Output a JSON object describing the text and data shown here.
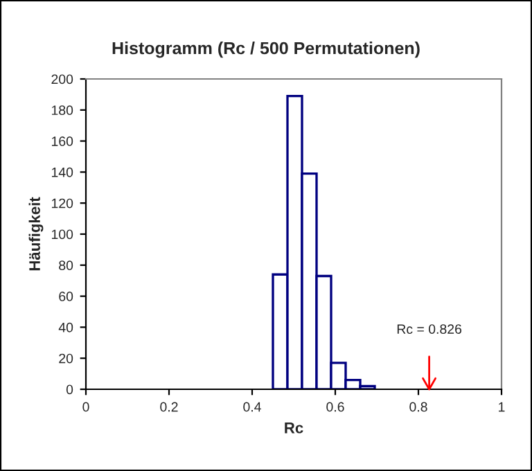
{
  "chart_data": {
    "type": "histogram",
    "title": "Histogramm (Rc / 500 Permutationen)",
    "xlabel": "Rc",
    "ylabel": "Häufigkeit",
    "bins": [
      0.45,
      0.485,
      0.52,
      0.555,
      0.59,
      0.625,
      0.66,
      0.695
    ],
    "values": [
      74,
      189,
      139,
      73,
      17,
      6,
      2
    ],
    "color": "#000080",
    "xlim": [
      0,
      1
    ],
    "xticks": [
      0,
      0.2,
      0.4,
      0.6,
      0.8,
      1
    ],
    "ylim": [
      0,
      200
    ],
    "yticks": [
      0,
      20,
      40,
      60,
      80,
      100,
      120,
      140,
      160,
      180,
      200
    ],
    "grid": false,
    "legend": false,
    "ref_lines": [
      {
        "axis": "x",
        "value": 0.826,
        "label": "Rc = 0.826",
        "color": "#ff0000"
      }
    ]
  }
}
